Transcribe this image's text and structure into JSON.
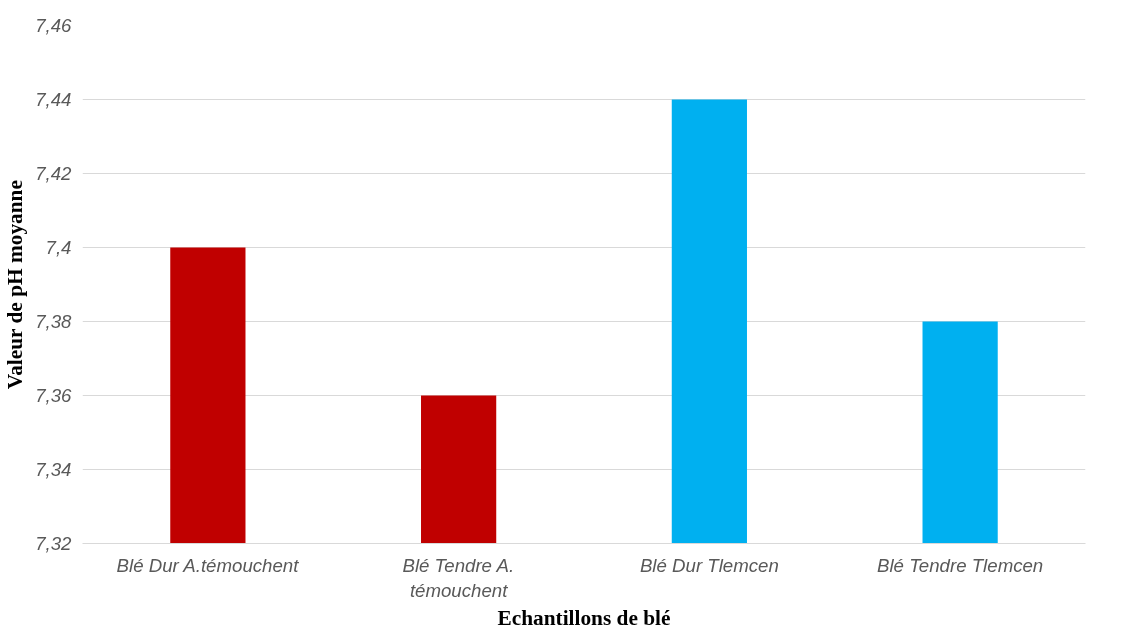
{
  "chart_data": {
    "type": "bar",
    "xlabel": "Echantillons de blé",
    "ylabel": "Valeur de pH moyanne",
    "categories": [
      "Blé Dur A.témouchent",
      "Blé Tendre A.\ntémouchent",
      "Blé Dur Tlemcen",
      "Blé Tendre Tlemcen"
    ],
    "values": [
      7.4,
      7.36,
      7.44,
      7.38
    ],
    "colors": [
      "#c00000",
      "#c00000",
      "#00b0f0",
      "#00b0f0"
    ],
    "ylim": [
      7.32,
      7.46
    ],
    "yticks": [
      {
        "value": 7.32,
        "label": "7,32"
      },
      {
        "value": 7.34,
        "label": "7,34"
      },
      {
        "value": 7.36,
        "label": "7,36"
      },
      {
        "value": 7.38,
        "label": "7,38"
      },
      {
        "value": 7.4,
        "label": "7,4"
      },
      {
        "value": 7.42,
        "label": "7,42"
      },
      {
        "value": 7.44,
        "label": "7,44"
      },
      {
        "value": 7.46,
        "label": "7,46"
      }
    ],
    "grid": "y"
  }
}
